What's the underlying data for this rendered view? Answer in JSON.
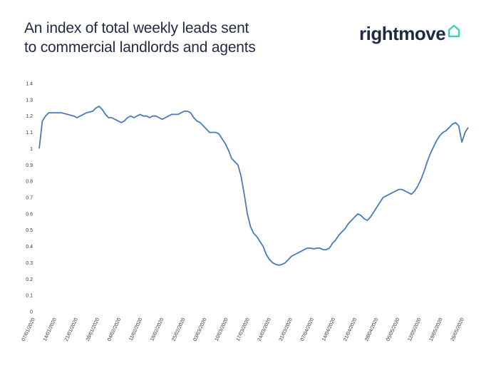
{
  "header": {
    "title_line1": "An index of total weekly leads sent",
    "title_line2": "to commercial landlords and agents",
    "logo_text": "rightmove",
    "logo_icon": "house-outline-icon",
    "logo_icon_color": "#3fd1b3"
  },
  "chart_data": {
    "type": "line",
    "title": "An index of total weekly leads sent to commercial landlords and agents",
    "xlabel": "",
    "ylabel": "",
    "ylim": [
      0,
      1.4
    ],
    "yticks": [
      "0",
      "0.1",
      "0.2",
      "0.3",
      "0.4",
      "0.5",
      "0.6",
      "0.7",
      "0.8",
      "0.9",
      "1",
      "1.1",
      "1.2",
      "1.3",
      "1.4"
    ],
    "xticks": [
      "07/01/2020",
      "14/01/2020",
      "21/01/2020",
      "28/01/2020",
      "04/02/2020",
      "11/02/2020",
      "18/02/2020",
      "25/02/2020",
      "03/03/2020",
      "10/03/2020",
      "17/03/2020",
      "24/03/2020",
      "31/03/2020",
      "07/04/2020",
      "14/04/2020",
      "21/04/2020",
      "28/04/2020",
      "05/05/2020",
      "12/05/2020",
      "19/05/2020",
      "26/05/2020"
    ],
    "grid": false,
    "line_color": "#4a7bb7",
    "series": [
      {
        "name": "",
        "values": [
          1.0,
          1.17,
          1.2,
          1.22,
          1.22,
          1.22,
          1.22,
          1.22,
          1.215,
          1.21,
          1.205,
          1.2,
          1.19,
          1.2,
          1.21,
          1.22,
          1.225,
          1.23,
          1.25,
          1.26,
          1.24,
          1.21,
          1.19,
          1.19,
          1.18,
          1.17,
          1.16,
          1.17,
          1.19,
          1.2,
          1.19,
          1.2,
          1.21,
          1.2,
          1.2,
          1.19,
          1.2,
          1.2,
          1.19,
          1.18,
          1.19,
          1.2,
          1.21,
          1.21,
          1.21,
          1.22,
          1.23,
          1.23,
          1.22,
          1.19,
          1.17,
          1.16,
          1.14,
          1.12,
          1.1,
          1.1,
          1.1,
          1.09,
          1.06,
          1.03,
          0.99,
          0.94,
          0.92,
          0.9,
          0.83,
          0.72,
          0.6,
          0.52,
          0.48,
          0.46,
          0.43,
          0.4,
          0.35,
          0.32,
          0.3,
          0.29,
          0.285,
          0.29,
          0.3,
          0.32,
          0.34,
          0.35,
          0.36,
          0.37,
          0.38,
          0.39,
          0.39,
          0.385,
          0.39,
          0.39,
          0.38,
          0.38,
          0.39,
          0.42,
          0.44,
          0.47,
          0.49,
          0.51,
          0.54,
          0.56,
          0.58,
          0.6,
          0.59,
          0.57,
          0.56,
          0.58,
          0.61,
          0.64,
          0.67,
          0.7,
          0.71,
          0.72,
          0.73,
          0.74,
          0.75,
          0.75,
          0.74,
          0.73,
          0.72,
          0.74,
          0.77,
          0.81,
          0.86,
          0.92,
          0.97,
          1.01,
          1.05,
          1.08,
          1.1,
          1.11,
          1.13,
          1.15,
          1.16,
          1.14,
          1.04,
          1.1,
          1.13
        ]
      }
    ]
  }
}
